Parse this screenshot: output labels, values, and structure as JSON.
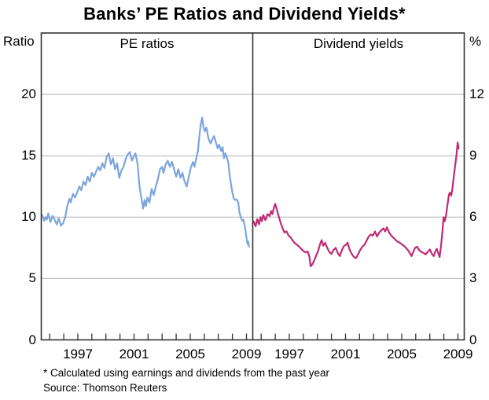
{
  "title": "Banks’ PE Ratios and Dividend Yields*",
  "footnote": "* Calculated using earnings and dividends from the past year",
  "source": "Source: Thomson Reuters",
  "left_axis_title": "Ratio",
  "right_axis_title": "%",
  "chart_data": {
    "type": "line",
    "grid": true,
    "legend": "none",
    "grid_color": "#b3b3b3",
    "frame_color": "#333333",
    "panels": [
      {
        "label": "PE ratios",
        "axis_side": "left",
        "axis_title": "Ratio",
        "ylim": [
          0,
          25
        ],
        "yticks": [
          0,
          5,
          10,
          15,
          20
        ],
        "xlim": [
          1994.4,
          2009.45
        ],
        "x_ticklabels": [
          1997,
          2001,
          2005,
          2009
        ],
        "series": {
          "id": "pe-ratios-series",
          "name": "Banks PE ratio",
          "color": "#7CA5DC",
          "points": [
            [
              1994.45,
              10.2
            ],
            [
              1994.6,
              9.7
            ],
            [
              1994.7,
              10.0
            ],
            [
              1994.8,
              9.8
            ],
            [
              1994.9,
              10.3
            ],
            [
              1995.05,
              9.6
            ],
            [
              1995.2,
              10.1
            ],
            [
              1995.35,
              9.8
            ],
            [
              1995.5,
              9.4
            ],
            [
              1995.65,
              9.9
            ],
            [
              1995.8,
              9.3
            ],
            [
              1995.95,
              9.5
            ],
            [
              1996.1,
              10.0
            ],
            [
              1996.25,
              10.9
            ],
            [
              1996.4,
              11.5
            ],
            [
              1996.5,
              11.2
            ],
            [
              1996.65,
              11.9
            ],
            [
              1996.8,
              11.6
            ],
            [
              1996.95,
              12.0
            ],
            [
              1997.1,
              12.5
            ],
            [
              1997.25,
              12.2
            ],
            [
              1997.4,
              12.9
            ],
            [
              1997.55,
              12.6
            ],
            [
              1997.7,
              13.3
            ],
            [
              1997.85,
              12.9
            ],
            [
              1998.0,
              13.6
            ],
            [
              1998.15,
              13.3
            ],
            [
              1998.3,
              13.7
            ],
            [
              1998.45,
              14.1
            ],
            [
              1998.6,
              13.8
            ],
            [
              1998.75,
              14.4
            ],
            [
              1998.9,
              14.0
            ],
            [
              1999.05,
              14.9
            ],
            [
              1999.2,
              15.2
            ],
            [
              1999.35,
              14.3
            ],
            [
              1999.5,
              14.8
            ],
            [
              1999.65,
              13.9
            ],
            [
              1999.8,
              14.4
            ],
            [
              1999.95,
              13.2
            ],
            [
              2000.1,
              13.8
            ],
            [
              2000.25,
              14.1
            ],
            [
              2000.4,
              14.7
            ],
            [
              2000.55,
              15.1
            ],
            [
              2000.7,
              15.3
            ],
            [
              2000.85,
              14.6
            ],
            [
              2001.0,
              15.0
            ],
            [
              2001.1,
              15.2
            ],
            [
              2001.25,
              14.4
            ],
            [
              2001.4,
              12.4
            ],
            [
              2001.55,
              11.4
            ],
            [
              2001.65,
              10.7
            ],
            [
              2001.75,
              11.4
            ],
            [
              2001.85,
              10.9
            ],
            [
              2001.95,
              11.6
            ],
            [
              2002.1,
              11.2
            ],
            [
              2002.25,
              12.3
            ],
            [
              2002.4,
              11.8
            ],
            [
              2002.55,
              12.5
            ],
            [
              2002.7,
              13.1
            ],
            [
              2002.85,
              13.9
            ],
            [
              2003.0,
              14.1
            ],
            [
              2003.1,
              13.6
            ],
            [
              2003.25,
              14.3
            ],
            [
              2003.4,
              14.6
            ],
            [
              2003.55,
              14.1
            ],
            [
              2003.7,
              14.5
            ],
            [
              2003.85,
              13.9
            ],
            [
              2004.0,
              13.3
            ],
            [
              2004.15,
              13.9
            ],
            [
              2004.3,
              13.2
            ],
            [
              2004.45,
              13.6
            ],
            [
              2004.6,
              12.9
            ],
            [
              2004.75,
              12.5
            ],
            [
              2004.9,
              13.3
            ],
            [
              2005.05,
              14.1
            ],
            [
              2005.2,
              14.5
            ],
            [
              2005.3,
              14.1
            ],
            [
              2005.45,
              14.9
            ],
            [
              2005.55,
              15.4
            ],
            [
              2005.65,
              16.6
            ],
            [
              2005.75,
              17.6
            ],
            [
              2005.85,
              18.1
            ],
            [
              2005.95,
              17.3
            ],
            [
              2006.05,
              17.0
            ],
            [
              2006.15,
              17.3
            ],
            [
              2006.3,
              16.4
            ],
            [
              2006.45,
              16.0
            ],
            [
              2006.6,
              16.4
            ],
            [
              2006.7,
              16.6
            ],
            [
              2006.85,
              16.0
            ],
            [
              2006.95,
              15.6
            ],
            [
              2007.05,
              15.9
            ],
            [
              2007.2,
              15.4
            ],
            [
              2007.3,
              15.7
            ],
            [
              2007.4,
              14.8
            ],
            [
              2007.5,
              15.2
            ],
            [
              2007.6,
              14.9
            ],
            [
              2007.7,
              14.5
            ],
            [
              2007.8,
              13.5
            ],
            [
              2007.9,
              12.7
            ],
            [
              2008.0,
              12.0
            ],
            [
              2008.1,
              11.5
            ],
            [
              2008.2,
              11.4
            ],
            [
              2008.3,
              11.45
            ],
            [
              2008.42,
              11.2
            ],
            [
              2008.5,
              10.4
            ],
            [
              2008.6,
              10.0
            ],
            [
              2008.7,
              9.7
            ],
            [
              2008.78,
              9.8
            ],
            [
              2008.88,
              9.3
            ],
            [
              2008.96,
              8.7
            ],
            [
              2009.02,
              8.2
            ],
            [
              2009.08,
              7.8
            ],
            [
              2009.13,
              8.0
            ],
            [
              2009.18,
              7.6
            ]
          ]
        }
      },
      {
        "label": "Dividend yields",
        "axis_side": "right",
        "axis_title": "%",
        "ylim": [
          0,
          15
        ],
        "yticks": [
          0,
          3,
          6,
          9,
          12
        ],
        "xlim": [
          1994.4,
          2009.45
        ],
        "x_ticklabels": [
          1997,
          2001,
          2005,
          2009
        ],
        "series": {
          "id": "dividend-yields-series",
          "name": "Banks dividend yield",
          "color": "#C02A74",
          "points": [
            [
              1994.45,
              5.8
            ],
            [
              1994.6,
              5.55
            ],
            [
              1994.72,
              5.9
            ],
            [
              1994.85,
              5.65
            ],
            [
              1994.95,
              6.0
            ],
            [
              1995.05,
              5.8
            ],
            [
              1995.15,
              6.1
            ],
            [
              1995.3,
              5.85
            ],
            [
              1995.45,
              6.15
            ],
            [
              1995.6,
              6.05
            ],
            [
              1995.7,
              6.3
            ],
            [
              1995.8,
              6.15
            ],
            [
              1995.9,
              6.45
            ],
            [
              1996.0,
              6.65
            ],
            [
              1996.1,
              6.4
            ],
            [
              1996.2,
              6.15
            ],
            [
              1996.35,
              5.8
            ],
            [
              1996.5,
              5.5
            ],
            [
              1996.65,
              5.25
            ],
            [
              1996.8,
              5.3
            ],
            [
              1996.95,
              5.1
            ],
            [
              1997.1,
              5.0
            ],
            [
              1997.25,
              4.85
            ],
            [
              1997.4,
              4.72
            ],
            [
              1997.55,
              4.65
            ],
            [
              1997.7,
              4.55
            ],
            [
              1997.85,
              4.45
            ],
            [
              1998.0,
              4.35
            ],
            [
              1998.15,
              4.28
            ],
            [
              1998.3,
              4.32
            ],
            [
              1998.42,
              4.1
            ],
            [
              1998.52,
              3.6
            ],
            [
              1998.62,
              3.68
            ],
            [
              1998.75,
              3.85
            ],
            [
              1998.9,
              4.1
            ],
            [
              1999.05,
              4.35
            ],
            [
              1999.2,
              4.7
            ],
            [
              1999.3,
              4.88
            ],
            [
              1999.42,
              4.6
            ],
            [
              1999.55,
              4.75
            ],
            [
              1999.7,
              4.5
            ],
            [
              1999.85,
              4.3
            ],
            [
              2000.0,
              4.2
            ],
            [
              2000.15,
              4.4
            ],
            [
              2000.3,
              4.5
            ],
            [
              2000.45,
              4.25
            ],
            [
              2000.6,
              4.1
            ],
            [
              2000.75,
              4.4
            ],
            [
              2000.9,
              4.6
            ],
            [
              2001.05,
              4.65
            ],
            [
              2001.15,
              4.75
            ],
            [
              2001.3,
              4.4
            ],
            [
              2001.45,
              4.2
            ],
            [
              2001.6,
              4.05
            ],
            [
              2001.75,
              4.0
            ],
            [
              2001.9,
              4.2
            ],
            [
              2002.05,
              4.4
            ],
            [
              2002.2,
              4.55
            ],
            [
              2002.35,
              4.65
            ],
            [
              2002.5,
              4.85
            ],
            [
              2002.65,
              5.05
            ],
            [
              2002.8,
              5.15
            ],
            [
              2002.95,
              5.1
            ],
            [
              2003.1,
              5.3
            ],
            [
              2003.25,
              5.05
            ],
            [
              2003.4,
              5.25
            ],
            [
              2003.55,
              5.35
            ],
            [
              2003.7,
              5.45
            ],
            [
              2003.82,
              5.3
            ],
            [
              2003.95,
              5.5
            ],
            [
              2004.1,
              5.25
            ],
            [
              2004.25,
              5.1
            ],
            [
              2004.4,
              5.0
            ],
            [
              2004.55,
              4.9
            ],
            [
              2004.7,
              4.8
            ],
            [
              2004.85,
              4.75
            ],
            [
              2005.0,
              4.68
            ],
            [
              2005.15,
              4.6
            ],
            [
              2005.3,
              4.5
            ],
            [
              2005.45,
              4.38
            ],
            [
              2005.6,
              4.22
            ],
            [
              2005.7,
              4.1
            ],
            [
              2005.82,
              4.3
            ],
            [
              2005.95,
              4.5
            ],
            [
              2006.1,
              4.55
            ],
            [
              2006.25,
              4.38
            ],
            [
              2006.4,
              4.3
            ],
            [
              2006.55,
              4.25
            ],
            [
              2006.7,
              4.18
            ],
            [
              2006.85,
              4.3
            ],
            [
              2007.0,
              4.42
            ],
            [
              2007.15,
              4.2
            ],
            [
              2007.28,
              4.1
            ],
            [
              2007.4,
              4.35
            ],
            [
              2007.5,
              4.45
            ],
            [
              2007.6,
              4.25
            ],
            [
              2007.7,
              4.05
            ],
            [
              2007.8,
              4.6
            ],
            [
              2007.9,
              5.3
            ],
            [
              2007.98,
              6.0
            ],
            [
              2008.06,
              5.8
            ],
            [
              2008.16,
              6.1
            ],
            [
              2008.26,
              6.6
            ],
            [
              2008.36,
              7.1
            ],
            [
              2008.44,
              7.2
            ],
            [
              2008.52,
              7.05
            ],
            [
              2008.6,
              7.35
            ],
            [
              2008.7,
              7.95
            ],
            [
              2008.8,
              8.5
            ],
            [
              2008.9,
              9.05
            ],
            [
              2008.98,
              9.65
            ],
            [
              2009.05,
              9.35
            ]
          ]
        }
      }
    ]
  }
}
